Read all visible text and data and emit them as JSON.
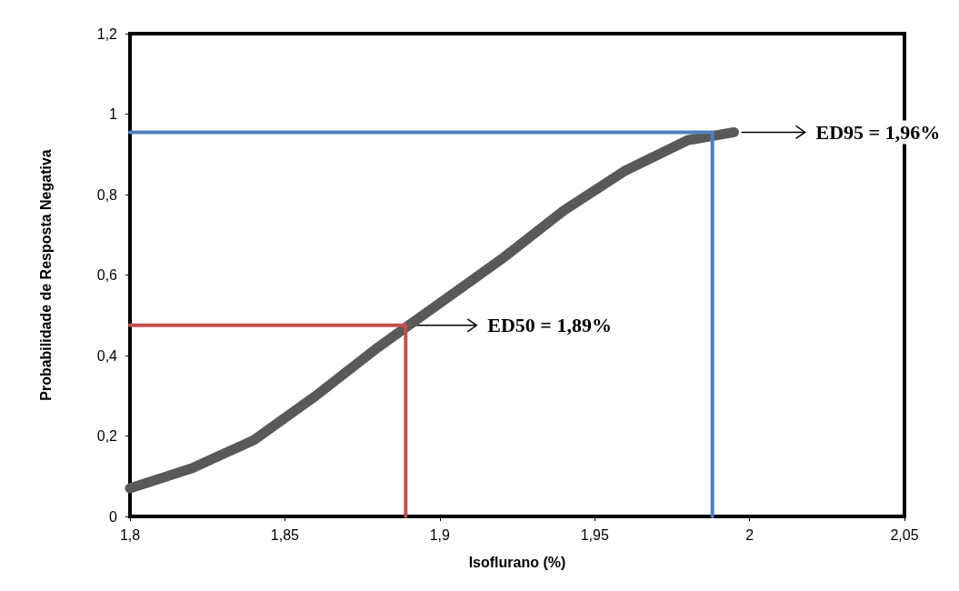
{
  "chart_data": {
    "type": "line",
    "xlabel": "Isoflurano (%)",
    "ylabel": "Probabilidade de Resposta Negativa",
    "xlim": [
      1.8,
      2.05
    ],
    "xticks": [
      {
        "value": 1.8,
        "label": "1,8"
      },
      {
        "value": 1.85,
        "label": "1,85"
      },
      {
        "value": 1.9,
        "label": "1,9"
      },
      {
        "value": 1.95,
        "label": "1,95"
      },
      {
        "value": 2,
        "label": "2"
      },
      {
        "value": 2.05,
        "label": "2,05"
      }
    ],
    "ylim": [
      0,
      1.2
    ],
    "yticks": [
      0,
      {
        "value": 0.2,
        "label": "0,2"
      },
      {
        "value": 0.4,
        "label": "0,4"
      },
      {
        "value": 0.6,
        "label": "0,6"
      },
      {
        "value": 0.8,
        "label": "0,8"
      },
      1,
      {
        "value": 1.2,
        "label": "1,2"
      }
    ],
    "grid": false,
    "marker": "none",
    "line_style": "solid",
    "series": [
      {
        "color": "#595959",
        "x": [
          1.8,
          1.82,
          1.84,
          1.86,
          1.88,
          1.89,
          1.9,
          1.92,
          1.94,
          1.96,
          1.98,
          1.995
        ],
        "values": [
          0.07,
          0.12,
          0.19,
          0.3,
          0.42,
          0.475,
          0.53,
          0.64,
          0.76,
          0.86,
          0.935,
          0.955
        ]
      },
      {
        "color": "#c0504d",
        "x": [
          1.8,
          1.889,
          1.889
        ],
        "values": [
          0.475,
          0.475,
          0
        ]
      },
      {
        "color": "#4f81bd",
        "x": [
          1.8,
          1.988,
          1.988
        ],
        "values": [
          0.955,
          0.955,
          0
        ]
      }
    ],
    "annotations": [
      {
        "text": "ED50 = 1,89%",
        "x": 1.889,
        "y": 0.475
      },
      {
        "text": "ED95 = 1,96%",
        "x": 1.995,
        "y": 0.955
      }
    ]
  }
}
